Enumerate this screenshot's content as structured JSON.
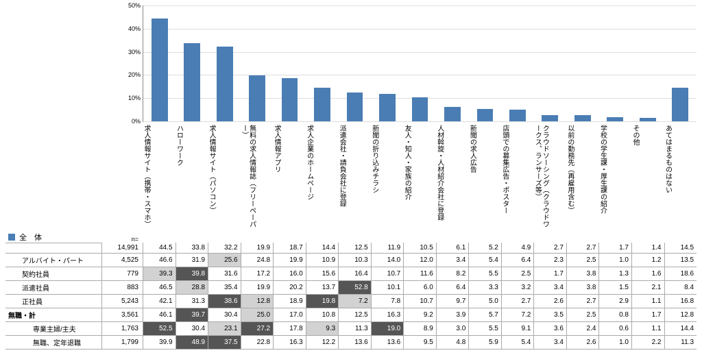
{
  "chart": {
    "type": "bar",
    "ylim": [
      0,
      50
    ],
    "ytick_step": 10,
    "y_suffix": "%",
    "bar_color": "#4a7db4",
    "grid_color": "#dddddd",
    "axis_color": "#888888",
    "background_color": "#ffffff",
    "categories": [
      "求人情報サイト（携帯・スマホ）",
      "ハローワーク",
      "求人情報サイト（パソコン）",
      "無料の求人情報誌（フリーペーパー）",
      "求人情報アプリ",
      "求人企業のホームページ",
      "派遣会社・請負会社に登録",
      "新聞の折り込みチラシ",
      "友人・知人・家族の紹介",
      "人材斡旋・人材紹介会社に登録",
      "新聞の求人広告",
      "店頭での募集広告・ポスター",
      "クラウドソーシング（クラウドワークス、ランサーズ等）",
      "以前の勤務先（再雇用含む）",
      "学校の学生課・厚生課の紹介",
      "その他",
      "あてはまるものはない"
    ],
    "values": [
      44.5,
      33.8,
      32.2,
      19.9,
      18.7,
      14.4,
      12.5,
      11.9,
      10.5,
      6.1,
      5.2,
      4.9,
      2.7,
      2.7,
      1.7,
      1.4,
      14.5
    ]
  },
  "legend": {
    "label": "全　体",
    "swatch_color": "#4a7db4"
  },
  "n_label": "n=",
  "table": {
    "shade_dark": "#555555",
    "shade_dark_text": "#ffffff",
    "shade_light": "#d2d2d2",
    "rows": [
      {
        "label": "",
        "n": 14991,
        "cells": [
          44.5,
          33.8,
          32.2,
          19.9,
          18.7,
          14.4,
          12.5,
          11.9,
          10.5,
          6.1,
          5.2,
          4.9,
          2.7,
          2.7,
          1.7,
          1.4,
          14.5
        ],
        "shades": [
          0,
          0,
          0,
          0,
          0,
          0,
          0,
          0,
          0,
          0,
          0,
          0,
          0,
          0,
          0,
          0,
          0
        ],
        "indent": 0,
        "is_total": true
      },
      {
        "label": "アルバイト・パート",
        "n": 4525,
        "cells": [
          46.6,
          31.9,
          25.6,
          24.8,
          19.9,
          10.9,
          10.3,
          14.0,
          12.0,
          3.4,
          5.4,
          6.4,
          2.3,
          2.5,
          1.0,
          1.2,
          13.5
        ],
        "shades": [
          0,
          0,
          1,
          0,
          0,
          0,
          0,
          0,
          0,
          0,
          0,
          0,
          0,
          0,
          0,
          0,
          0
        ],
        "indent": 1
      },
      {
        "label": "契約社員",
        "n": 779,
        "cells": [
          39.3,
          39.8,
          31.6,
          17.2,
          16.0,
          15.6,
          16.4,
          10.7,
          11.6,
          8.2,
          5.5,
          2.5,
          1.7,
          3.8,
          1.3,
          1.6,
          18.6
        ],
        "shades": [
          1,
          2,
          0,
          0,
          0,
          0,
          0,
          0,
          0,
          0,
          0,
          0,
          0,
          0,
          0,
          0,
          0
        ],
        "indent": 1
      },
      {
        "label": "派遣社員",
        "n": 883,
        "cells": [
          46.5,
          28.8,
          35.4,
          19.9,
          20.2,
          13.7,
          52.8,
          10.1,
          6.0,
          6.4,
          3.3,
          3.2,
          3.4,
          3.8,
          1.5,
          2.1,
          8.4
        ],
        "shades": [
          0,
          1,
          0,
          0,
          0,
          0,
          2,
          0,
          0,
          0,
          0,
          0,
          0,
          0,
          0,
          0,
          0
        ],
        "indent": 1
      },
      {
        "label": "正社員",
        "n": 5243,
        "cells": [
          42.1,
          31.3,
          38.6,
          12.8,
          18.9,
          19.8,
          7.2,
          7.8,
          10.7,
          9.7,
          5.0,
          2.7,
          2.6,
          2.7,
          2.9,
          1.1,
          16.8
        ],
        "shades": [
          0,
          0,
          2,
          1,
          0,
          2,
          1,
          0,
          0,
          0,
          0,
          0,
          0,
          0,
          0,
          0,
          0
        ],
        "indent": 1
      },
      {
        "label": "無職・計",
        "n": 3561,
        "cells": [
          46.1,
          39.7,
          30.4,
          25.0,
          17.0,
          10.8,
          12.5,
          16.3,
          9.2,
          3.9,
          5.7,
          7.2,
          3.5,
          2.5,
          0.8,
          1.7,
          12.8
        ],
        "shades": [
          0,
          2,
          0,
          1,
          0,
          0,
          0,
          0,
          0,
          0,
          0,
          0,
          0,
          0,
          0,
          0,
          0
        ],
        "indent": 0,
        "bold": true
      },
      {
        "label": "専業主婦/主夫",
        "n": 1763,
        "cells": [
          52.5,
          30.4,
          23.1,
          27.2,
          17.8,
          9.3,
          11.3,
          19.0,
          8.9,
          3.0,
          5.5,
          9.1,
          3.6,
          2.4,
          0.6,
          1.1,
          14.4
        ],
        "shades": [
          2,
          0,
          1,
          2,
          0,
          1,
          0,
          2,
          0,
          0,
          0,
          0,
          0,
          0,
          0,
          0,
          0
        ],
        "indent": 2
      },
      {
        "label": "無職、定年退職",
        "n": 1799,
        "cells": [
          39.9,
          48.9,
          37.5,
          22.8,
          16.3,
          12.2,
          13.6,
          13.6,
          9.5,
          4.8,
          5.9,
          5.4,
          3.4,
          2.6,
          1.0,
          2.2,
          11.3
        ],
        "shades": [
          0,
          2,
          2,
          0,
          0,
          0,
          0,
          0,
          0,
          0,
          0,
          0,
          0,
          0,
          0,
          0,
          0
        ],
        "indent": 2
      }
    ]
  }
}
